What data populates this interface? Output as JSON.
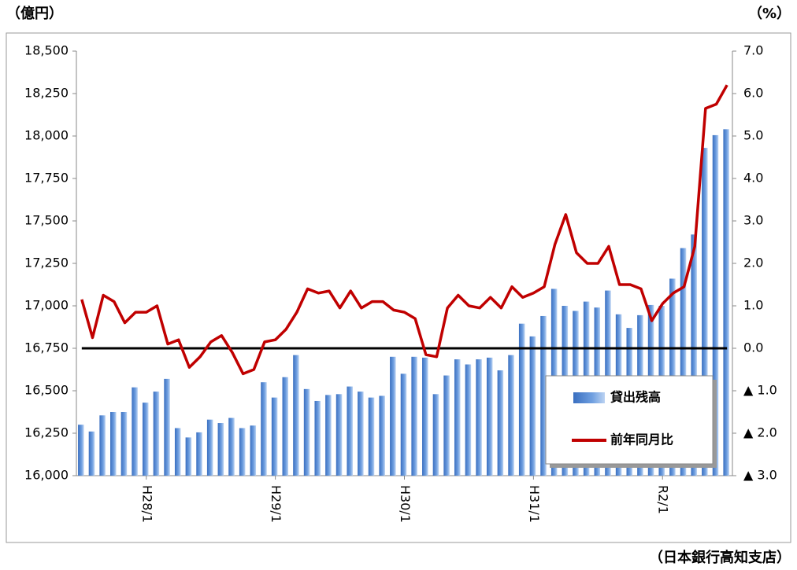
{
  "chart_data": {
    "type": "bar_line",
    "y_unit_label": "（億円）",
    "y2_unit_label": "（%）",
    "source": "（日本銀行高知支店）",
    "categories": [
      null,
      null,
      null,
      null,
      null,
      null,
      "H28/1",
      null,
      null,
      null,
      null,
      null,
      null,
      null,
      null,
      null,
      null,
      null,
      "H29/1",
      null,
      null,
      null,
      null,
      null,
      null,
      null,
      null,
      null,
      null,
      null,
      "H30/1",
      null,
      null,
      null,
      null,
      null,
      null,
      null,
      null,
      null,
      null,
      null,
      "H31/1",
      null,
      null,
      null,
      null,
      null,
      null,
      null,
      null,
      null,
      null,
      null,
      "R2/1",
      null,
      null,
      null,
      null,
      null,
      null
    ],
    "series": [
      {
        "name": "貸出残高",
        "type": "bar",
        "color": "#4f86d0",
        "values": [
          16300,
          16260,
          16355,
          16375,
          16375,
          16520,
          16430,
          16495,
          16570,
          16280,
          16225,
          16255,
          16330,
          16310,
          16340,
          16280,
          16295,
          16550,
          16460,
          16580,
          16710,
          16510,
          16440,
          16475,
          16480,
          16525,
          16495,
          16460,
          16470,
          16700,
          16600,
          16700,
          16695,
          16480,
          16590,
          16685,
          16655,
          16685,
          16695,
          16620,
          16710,
          16895,
          16820,
          16940,
          17100,
          17000,
          16970,
          17025,
          16990,
          17090,
          16950,
          16870,
          16945,
          17005,
          17000,
          17160,
          17340,
          17420,
          17930,
          18005,
          18040
        ]
      },
      {
        "name": "前年同月比",
        "type": "line",
        "axis": "y2",
        "color": "#c00000",
        "values": [
          1.15,
          0.25,
          1.25,
          1.1,
          0.6,
          0.85,
          0.85,
          1.0,
          0.1,
          0.2,
          -0.45,
          -0.2,
          0.15,
          0.3,
          -0.1,
          -0.6,
          -0.5,
          0.15,
          0.2,
          0.45,
          0.85,
          1.4,
          1.3,
          1.35,
          0.95,
          1.35,
          0.95,
          1.1,
          1.1,
          0.9,
          0.85,
          0.7,
          -0.15,
          -0.2,
          0.95,
          1.25,
          1.0,
          0.95,
          1.2,
          0.95,
          1.45,
          1.2,
          1.3,
          1.45,
          2.45,
          3.15,
          2.25,
          2.0,
          2.0,
          2.4,
          1.5,
          1.5,
          1.4,
          0.65,
          1.05,
          1.3,
          1.45,
          2.4,
          5.65,
          5.75,
          6.2
        ]
      }
    ],
    "ylim": [
      16000,
      18500
    ],
    "yticks": [
      {
        "value": 16000,
        "label": "16,000"
      },
      {
        "value": 16250,
        "label": "16,250"
      },
      {
        "value": 16500,
        "label": "16,500"
      },
      {
        "value": 16750,
        "label": "16,750"
      },
      {
        "value": 17000,
        "label": "17,000"
      },
      {
        "value": 17250,
        "label": "17,250"
      },
      {
        "value": 17500,
        "label": "17,500"
      },
      {
        "value": 17750,
        "label": "17,750"
      },
      {
        "value": 18000,
        "label": "18,000"
      },
      {
        "value": 18250,
        "label": "18,250"
      },
      {
        "value": 18500,
        "label": "18,500"
      }
    ],
    "y2lim": [
      -3,
      7
    ],
    "y2ticks": [
      {
        "value": -3,
        "label": "▲ 3.0"
      },
      {
        "value": -2,
        "label": "▲ 2.0"
      },
      {
        "value": -1,
        "label": "▲ 1.0"
      },
      {
        "value": 0,
        "label": "0.0"
      },
      {
        "value": 1,
        "label": "1.0"
      },
      {
        "value": 2,
        "label": "2.0"
      },
      {
        "value": 3,
        "label": "3.0"
      },
      {
        "value": 4,
        "label": "4.0"
      },
      {
        "value": 5,
        "label": "5.0"
      },
      {
        "value": 6,
        "label": "6.0"
      },
      {
        "value": 7,
        "label": "7.0"
      }
    ],
    "zero_line": 0,
    "legend": "lower-right"
  }
}
